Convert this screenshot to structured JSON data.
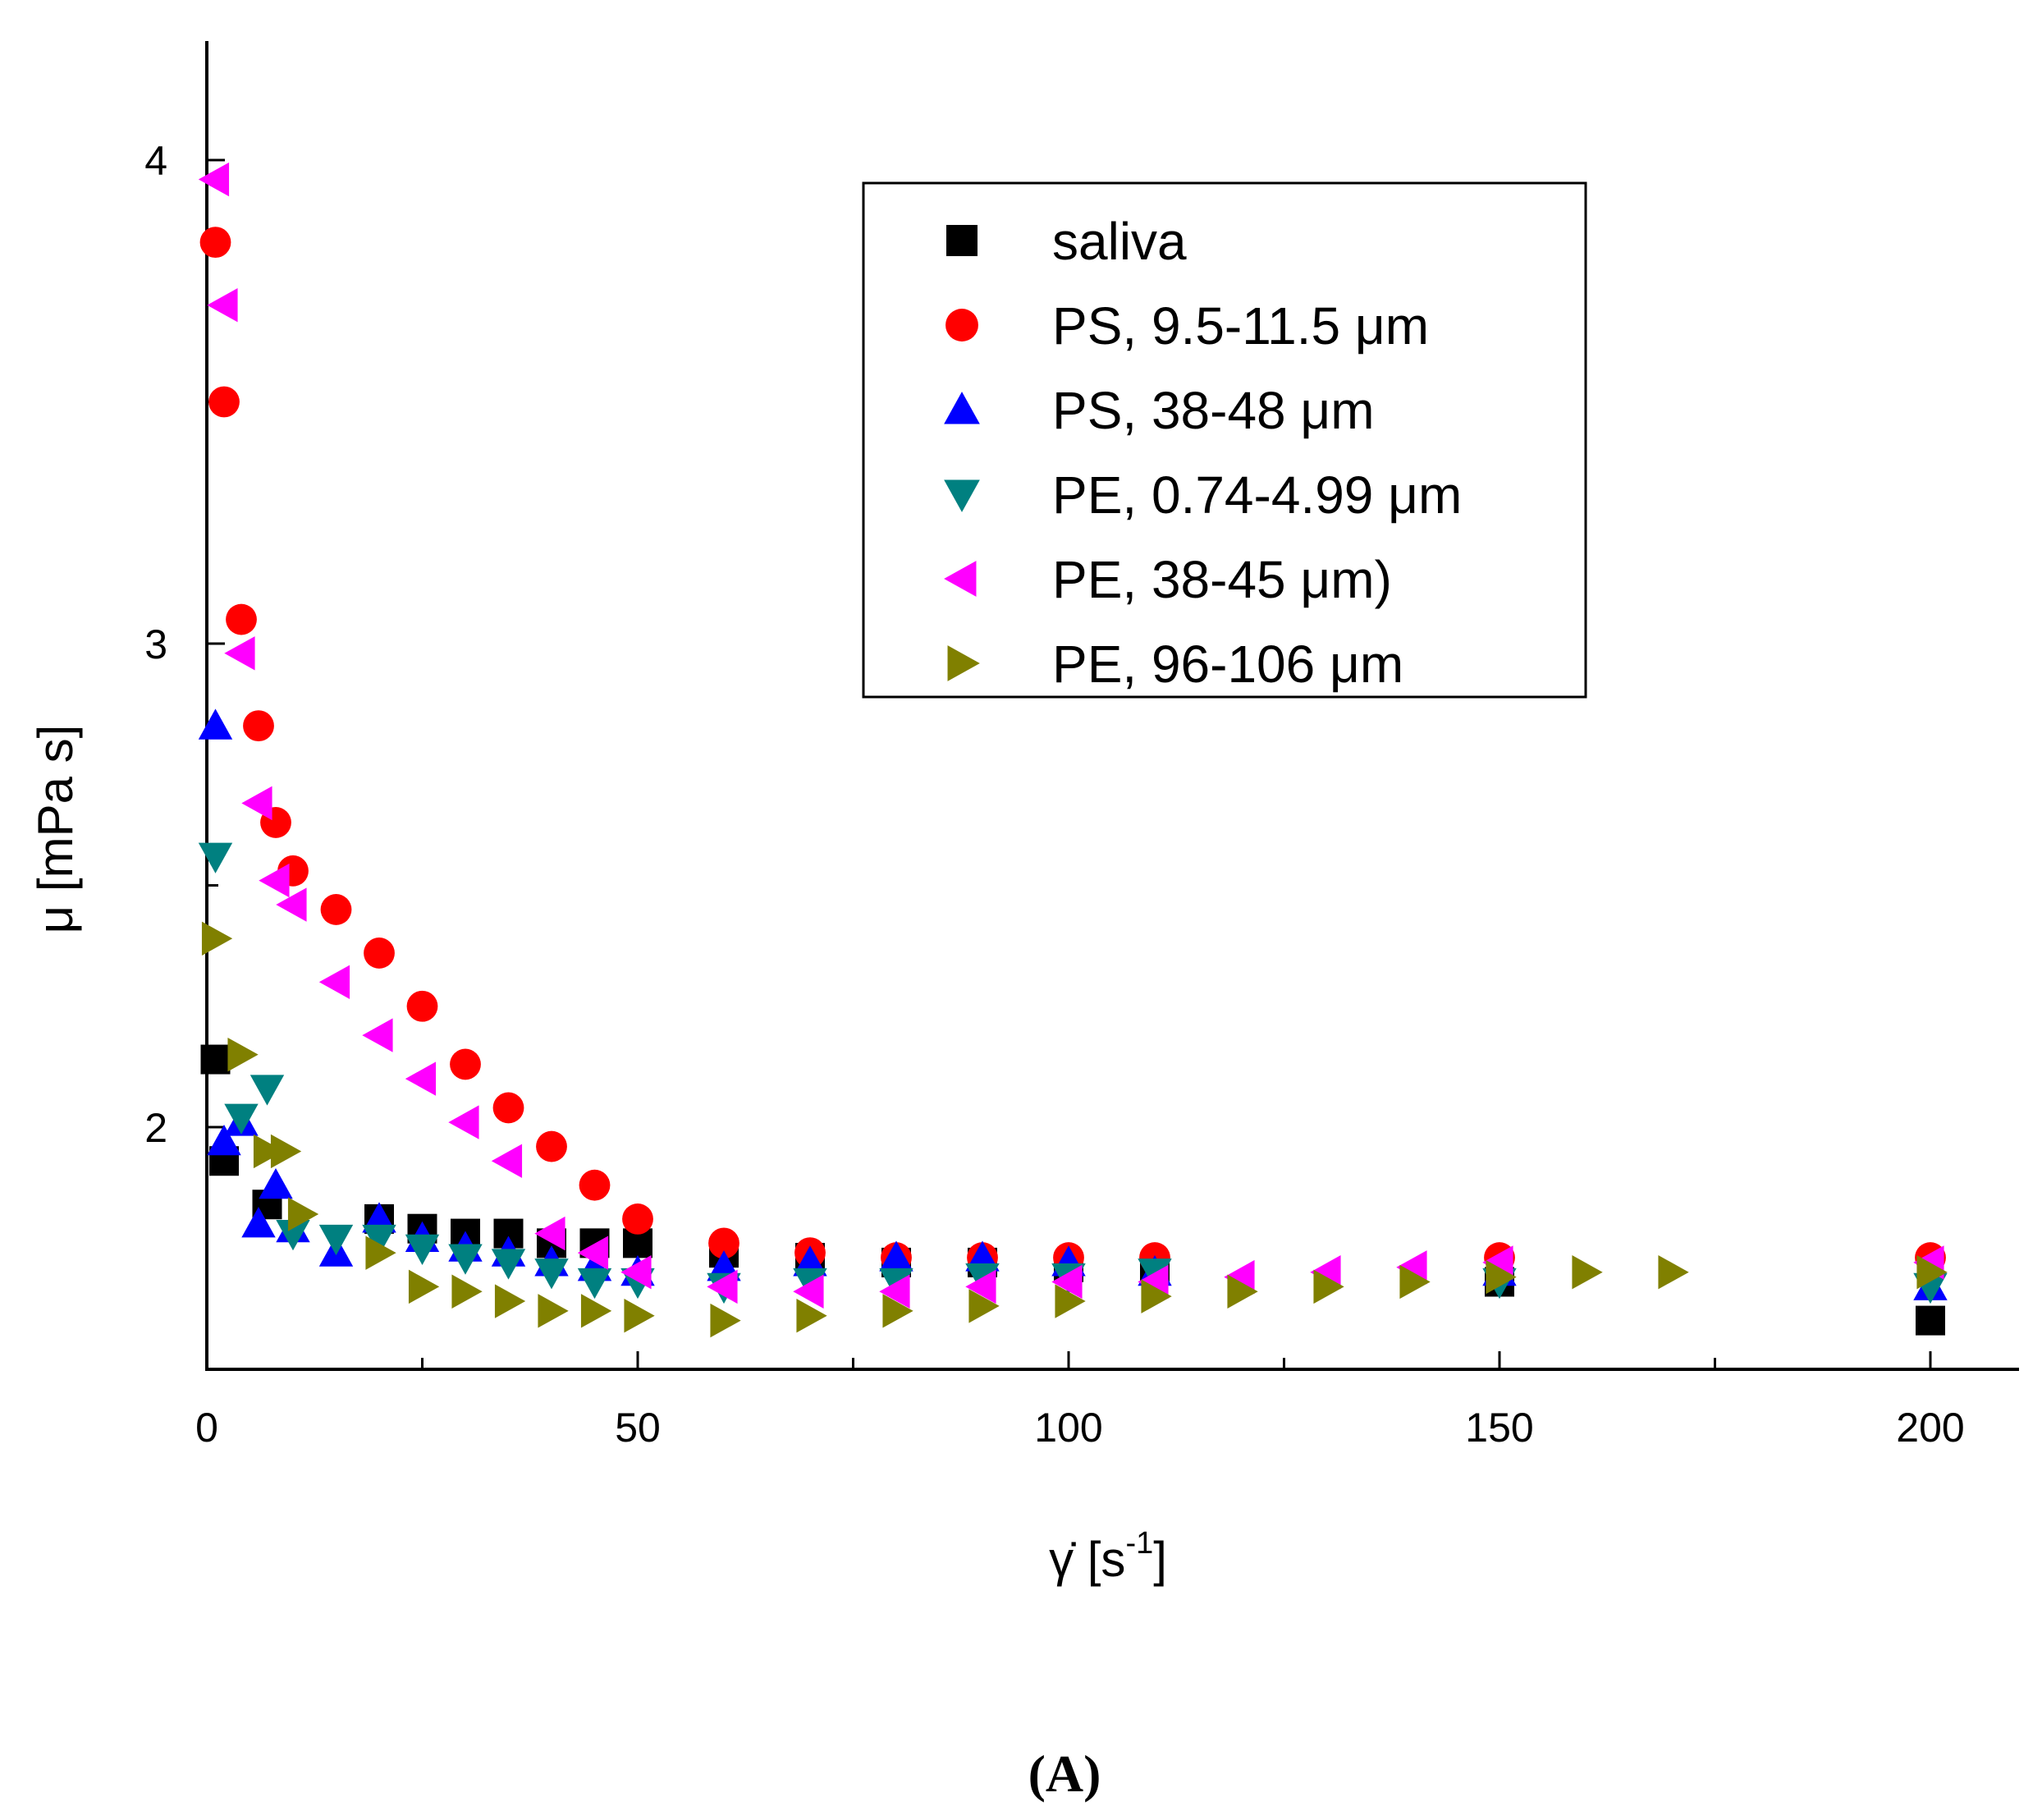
{
  "chart_data": {
    "type": "scatter",
    "title": "",
    "xlabel": "γ̇ [s-1]",
    "xlabel_base": "γ̇ [s",
    "xlabel_sup": "-1",
    "xlabel_close": "]",
    "ylabel": "μ [mPa s]",
    "xlim": [
      0,
      210
    ],
    "ylim": [
      1.5,
      4.25
    ],
    "xticks": [
      0,
      50,
      100,
      150,
      200
    ],
    "xtick_labels": [
      "0",
      "50",
      "100",
      "150",
      "200"
    ],
    "yticks": [
      2,
      3,
      4
    ],
    "ytick_labels": [
      "2",
      "3",
      "4"
    ],
    "grid": false,
    "legend_position": "top-right",
    "caption": "(A)",
    "series": [
      {
        "name": "saliva",
        "marker": "square",
        "color": "#000000",
        "x": [
          1,
          2,
          7,
          20,
          25,
          30,
          35,
          40,
          45,
          50,
          60,
          70,
          80,
          90,
          100,
          110,
          150,
          200
        ],
        "y": [
          2.14,
          1.93,
          1.84,
          1.81,
          1.79,
          1.78,
          1.78,
          1.76,
          1.76,
          1.76,
          1.74,
          1.73,
          1.72,
          1.72,
          1.71,
          1.71,
          1.68,
          1.6
        ]
      },
      {
        "name": "PS, 9.5-11.5 μm",
        "marker": "circle",
        "color": "#ff0000",
        "x": [
          1,
          2,
          4,
          6,
          8,
          10,
          15,
          20,
          25,
          30,
          35,
          40,
          45,
          50,
          60,
          70,
          80,
          90,
          100,
          110,
          150,
          200
        ],
        "y": [
          3.83,
          3.5,
          3.05,
          2.83,
          2.63,
          2.53,
          2.45,
          2.36,
          2.25,
          2.13,
          2.04,
          1.96,
          1.88,
          1.81,
          1.76,
          1.74,
          1.73,
          1.73,
          1.73,
          1.73,
          1.73,
          1.73
        ]
      },
      {
        "name": "PS, 38-48 μm",
        "marker": "triangle-up",
        "color": "#0000ff",
        "x": [
          1,
          2,
          4,
          6,
          8,
          10,
          15,
          20,
          25,
          30,
          35,
          40,
          45,
          50,
          60,
          70,
          80,
          90,
          100,
          110,
          150,
          200
        ],
        "y": [
          2.83,
          1.97,
          2.01,
          1.8,
          1.88,
          1.79,
          1.74,
          1.81,
          1.77,
          1.75,
          1.74,
          1.72,
          1.71,
          1.7,
          1.71,
          1.72,
          1.73,
          1.73,
          1.72,
          1.7,
          1.7,
          1.67
        ]
      },
      {
        "name": "PE, 0.74-4.99 μm",
        "marker": "triangle-down",
        "color": "#008080",
        "x": [
          1,
          4,
          7,
          10,
          15,
          20,
          25,
          30,
          35,
          40,
          45,
          50,
          60,
          70,
          80,
          90,
          100,
          110,
          150,
          200
        ],
        "y": [
          2.56,
          2.02,
          2.08,
          1.78,
          1.77,
          1.77,
          1.75,
          1.73,
          1.72,
          1.7,
          1.68,
          1.68,
          1.67,
          1.68,
          1.68,
          1.69,
          1.69,
          1.7,
          1.68,
          1.67
        ]
      },
      {
        "name": "PE, 38-45 μm)",
        "marker": "triangle-left",
        "color": "#ff00ff",
        "x": [
          1,
          2,
          4,
          6,
          8,
          10,
          15,
          20,
          25,
          30,
          35,
          40,
          45,
          50,
          60,
          70,
          80,
          90,
          100,
          110,
          120,
          130,
          140,
          150,
          200
        ],
        "y": [
          3.96,
          3.7,
          2.98,
          2.67,
          2.51,
          2.46,
          2.3,
          2.19,
          2.1,
          2.01,
          1.93,
          1.78,
          1.74,
          1.7,
          1.67,
          1.66,
          1.66,
          1.67,
          1.68,
          1.68,
          1.69,
          1.7,
          1.71,
          1.72,
          1.72
        ]
      },
      {
        "name": "PE, 96-106 μm",
        "marker": "triangle-right",
        "color": "#808000",
        "x": [
          1,
          4,
          7,
          9,
          11,
          20,
          25,
          30,
          35,
          40,
          45,
          50,
          60,
          70,
          80,
          90,
          100,
          110,
          120,
          130,
          140,
          150,
          160,
          170,
          200
        ],
        "y": [
          2.39,
          2.15,
          1.95,
          1.95,
          1.82,
          1.74,
          1.67,
          1.66,
          1.64,
          1.62,
          1.62,
          1.61,
          1.6,
          1.61,
          1.62,
          1.63,
          1.64,
          1.65,
          1.66,
          1.67,
          1.68,
          1.69,
          1.7,
          1.7,
          1.7
        ]
      }
    ]
  }
}
